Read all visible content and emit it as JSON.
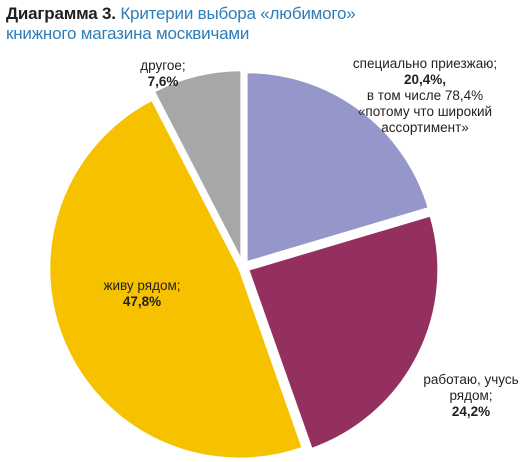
{
  "title": {
    "number": "Диаграмма 3.",
    "text_line1": "Критерии выбора «любимого»",
    "text_line2": "книжного магазина москвичами"
  },
  "chart_data": {
    "type": "pie",
    "title": "Диаграмма 3. Критерии выбора «любимого» книжного магазина москвичами",
    "slices": [
      {
        "label": "специально приезжаю;",
        "value": 20.4,
        "value_label": "20,4%,",
        "note": [
          "в том числе 78,4%",
          "«потому что широкий",
          "ассортимент»"
        ],
        "color": "#9596c9"
      },
      {
        "label": "работаю, учусь рядом;",
        "value": 24.2,
        "value_label": "24,2%",
        "color": "#93305f"
      },
      {
        "label": "живу рядом;",
        "value": 47.8,
        "value_label": "47,8%",
        "color": "#f6c200"
      },
      {
        "label": "другое;",
        "value": 7.6,
        "value_label": "7,6%",
        "color": "#a5a7a9"
      }
    ]
  },
  "labels": {
    "other": {
      "name": "другое;",
      "value": "7,6%"
    },
    "special": {
      "name": "специально приезжаю;",
      "value": "20,4%,",
      "note1": "в том числе 78,4%",
      "note2": "«потому что широкий",
      "note3": "ассортимент»"
    },
    "work": {
      "name1": "работаю, учусь",
      "name2": "рядом;",
      "value": "24,2%"
    },
    "live": {
      "name": "живу рядом;",
      "value": "47,8%"
    }
  }
}
